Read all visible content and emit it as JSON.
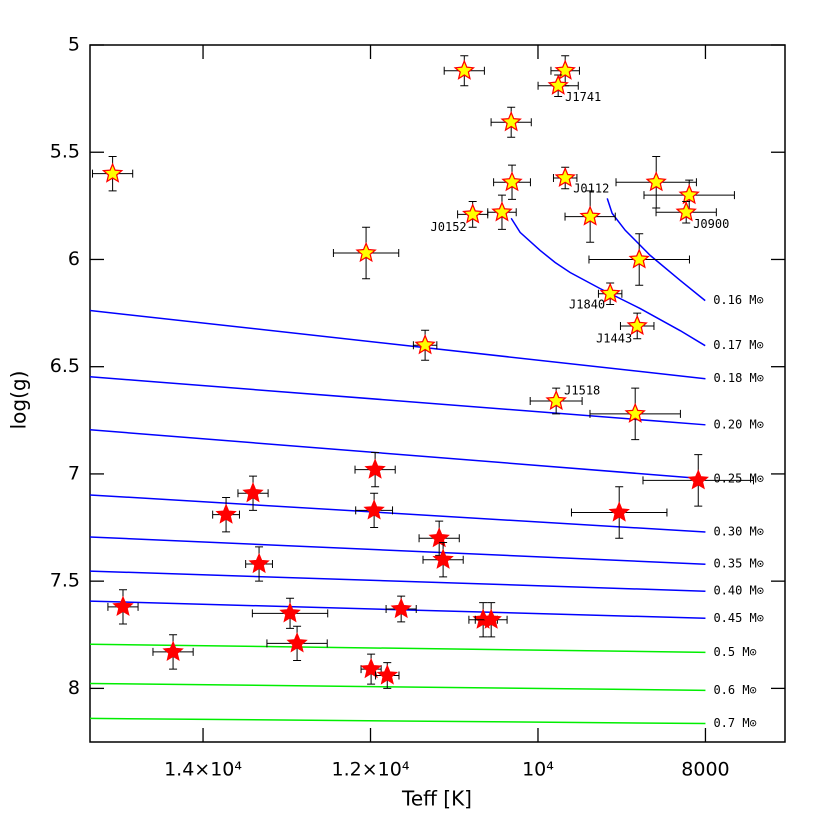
{
  "chart_data": {
    "type": "scatter",
    "xlabel": "Teff [K]",
    "ylabel": "log(g)",
    "xlim": [
      15350,
      7050
    ],
    "ylim": [
      8.25,
      5
    ],
    "xticks": [
      {
        "value": 14000,
        "label": "1.4×10⁴"
      },
      {
        "value": 12000,
        "label": "1.2×10⁴"
      },
      {
        "value": 10000,
        "label": "10⁴"
      },
      8000
    ],
    "yticks": [
      5,
      5.5,
      6,
      6.5,
      7,
      7.5,
      8
    ],
    "series": [
      {
        "type": "line",
        "name": "0.16 M⊙",
        "color": "#0000ff",
        "x": [
          9173,
          9114,
          8958,
          8660,
          8301,
          8003
        ],
        "y": [
          5.715,
          5.785,
          5.864,
          5.981,
          6.098,
          6.192
        ]
      },
      {
        "type": "line",
        "name": "0.17 M⊙",
        "color": "#0000ff",
        "x": [
          10320,
          10213,
          9974,
          9795,
          9616,
          9257,
          8779,
          8301,
          8003
        ],
        "y": [
          5.808,
          5.874,
          5.958,
          6.014,
          6.061,
          6.136,
          6.229,
          6.332,
          6.402
        ]
      },
      {
        "type": "line",
        "name": "0.18 M⊙",
        "color": "#0000ff",
        "x": [
          15350,
          8000
        ],
        "y": [
          6.238,
          6.556
        ]
      },
      {
        "type": "line",
        "name": "0.20 M⊙",
        "color": "#0000ff",
        "x": [
          15350,
          8000
        ],
        "y": [
          6.547,
          6.771
        ]
      },
      {
        "type": "line",
        "name": "0.25 M⊙",
        "color": "#0000ff",
        "x": [
          15350,
          8000
        ],
        "y": [
          6.794,
          7.023
        ]
      },
      {
        "type": "line",
        "name": "0.30 M⊙",
        "color": "#0000ff",
        "x": [
          15350,
          8000
        ],
        "y": [
          7.098,
          7.271
        ]
      },
      {
        "type": "line",
        "name": "0.35 M⊙",
        "color": "#0000ff",
        "x": [
          15350,
          8000
        ],
        "y": [
          7.294,
          7.421
        ]
      },
      {
        "type": "line",
        "name": "0.40 M⊙",
        "color": "#0000ff",
        "x": [
          15350,
          8000
        ],
        "y": [
          7.453,
          7.547
        ]
      },
      {
        "type": "line",
        "name": "0.45 M⊙",
        "color": "#0000ff",
        "x": [
          15350,
          8000
        ],
        "y": [
          7.593,
          7.673
        ]
      },
      {
        "type": "line",
        "name": "0.5 M⊙",
        "color": "#00ee00",
        "x": [
          15350,
          8000
        ],
        "y": [
          7.794,
          7.832
        ]
      },
      {
        "type": "line",
        "name": "0.6 M⊙",
        "color": "#00ee00",
        "x": [
          15350,
          8000
        ],
        "y": [
          7.977,
          8.009
        ]
      },
      {
        "type": "line",
        "name": "0.7 M⊙",
        "color": "#00ee00",
        "x": [
          15350,
          8000
        ],
        "y": [
          8.14,
          8.164
        ]
      },
      {
        "type": "scatter",
        "color": "#ffff00",
        "edgecolor": "#ff0000",
        "x": [
          15080,
          10880,
          9675,
          9759,
          10320,
          10310,
          9675,
          8588,
          8194,
          10430,
          10780,
          9377,
          8230,
          12053,
          8791,
          9138,
          8815,
          11348,
          9783,
          8839
        ],
        "y": [
          5.6,
          5.12,
          5.12,
          5.19,
          5.36,
          5.64,
          5.62,
          5.64,
          5.7,
          5.78,
          5.79,
          5.8,
          5.78,
          5.97,
          6.0,
          6.16,
          6.31,
          6.4,
          6.66,
          6.72
        ],
        "xerr": [
          240,
          240,
          170,
          240,
          240,
          220,
          140,
          480,
          540,
          170,
          180,
          300,
          360,
          390,
          600,
          140,
          200,
          140,
          310,
          540
        ],
        "yerr": [
          0.08,
          0.07,
          0.07,
          0.05,
          0.07,
          0.08,
          0.05,
          0.12,
          0.07,
          0.08,
          0.06,
          0.12,
          0.05,
          0.12,
          0.12,
          0.05,
          0.06,
          0.07,
          0.06,
          0.12
        ],
        "point_labels": [
          null,
          null,
          null,
          "J1741",
          null,
          null,
          "J0112",
          null,
          null,
          null,
          "J0152",
          null,
          "J0900",
          null,
          null,
          "J1840",
          "J1443",
          null,
          "J1518",
          null
        ]
      },
      {
        "type": "scatter",
        "color": "#ff0000",
        "edgecolor": "#ff0000",
        "x": [
          14956,
          14358,
          13725,
          13403,
          13331,
          12961,
          12877,
          11945,
          11957,
          11993,
          11800,
          11634,
          11180,
          11133,
          10655,
          10559,
          9030,
          8086
        ],
        "y": [
          7.62,
          7.83,
          7.19,
          7.09,
          7.42,
          7.65,
          7.79,
          6.98,
          7.17,
          7.91,
          7.94,
          7.63,
          7.3,
          7.4,
          7.68,
          7.68,
          7.18,
          7.03
        ],
        "xerr": [
          180,
          240,
          160,
          180,
          160,
          450,
          360,
          240,
          220,
          120,
          140,
          180,
          240,
          240,
          170,
          190,
          570,
          660
        ],
        "yerr": [
          0.08,
          0.08,
          0.08,
          0.08,
          0.08,
          0.07,
          0.08,
          0.08,
          0.08,
          0.07,
          0.06,
          0.06,
          0.08,
          0.08,
          0.08,
          0.08,
          0.12,
          0.12
        ]
      }
    ]
  }
}
